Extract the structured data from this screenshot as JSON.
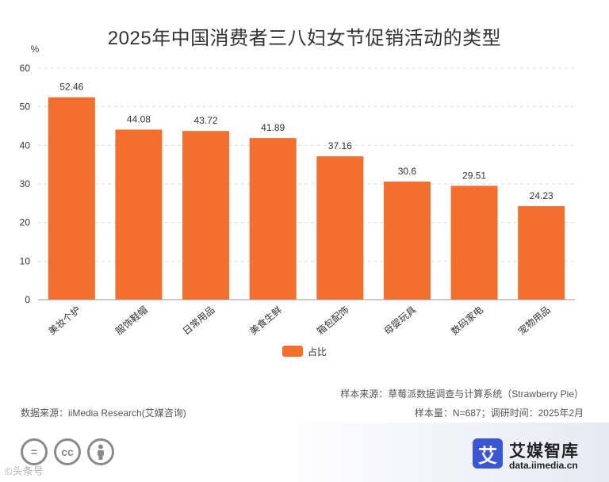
{
  "chart_data": {
    "type": "bar",
    "title": "2025年中国消费者三八妇女节促销活动的类型",
    "ylabel": "%",
    "xlabel": "",
    "ylim": [
      0,
      60
    ],
    "yticks": [
      "0",
      "10",
      "20",
      "30",
      "40",
      "50",
      "60"
    ],
    "categories": [
      "美妆个护",
      "服饰鞋帽",
      "日常用品",
      "美食生鲜",
      "箱包配饰",
      "母婴玩具",
      "数码家电",
      "宠物用品"
    ],
    "series": [
      {
        "name": "占比",
        "values": [
          52.46,
          44.08,
          43.72,
          41.89,
          37.16,
          30.6,
          29.51,
          24.23
        ],
        "labels": [
          "52.46",
          "44.08",
          "43.72",
          "41.89",
          "37.16",
          "30.6",
          "29.51",
          "24.23"
        ]
      }
    ],
    "legend_position": "bottom-center",
    "grid": true
  },
  "colors": {
    "bar": "#f36f2d",
    "grid": "#dddddd",
    "axis": "#999999",
    "logo": "#3a56d4"
  },
  "footer": {
    "data_source": "数据来源：iiMedia Research(艾媒咨询)",
    "sample_source": "样本来源：草莓派数据调查与计算系统（Strawberry Pie）",
    "sample_info": "样本量：N=687；调研时间：2025年2月"
  },
  "branding": {
    "logo_char": "艾",
    "name": "艾媒智库",
    "url": "data.iimedia.cn",
    "cc_icons": [
      "=",
      "cc",
      "person"
    ],
    "watermark": "©头条号"
  }
}
